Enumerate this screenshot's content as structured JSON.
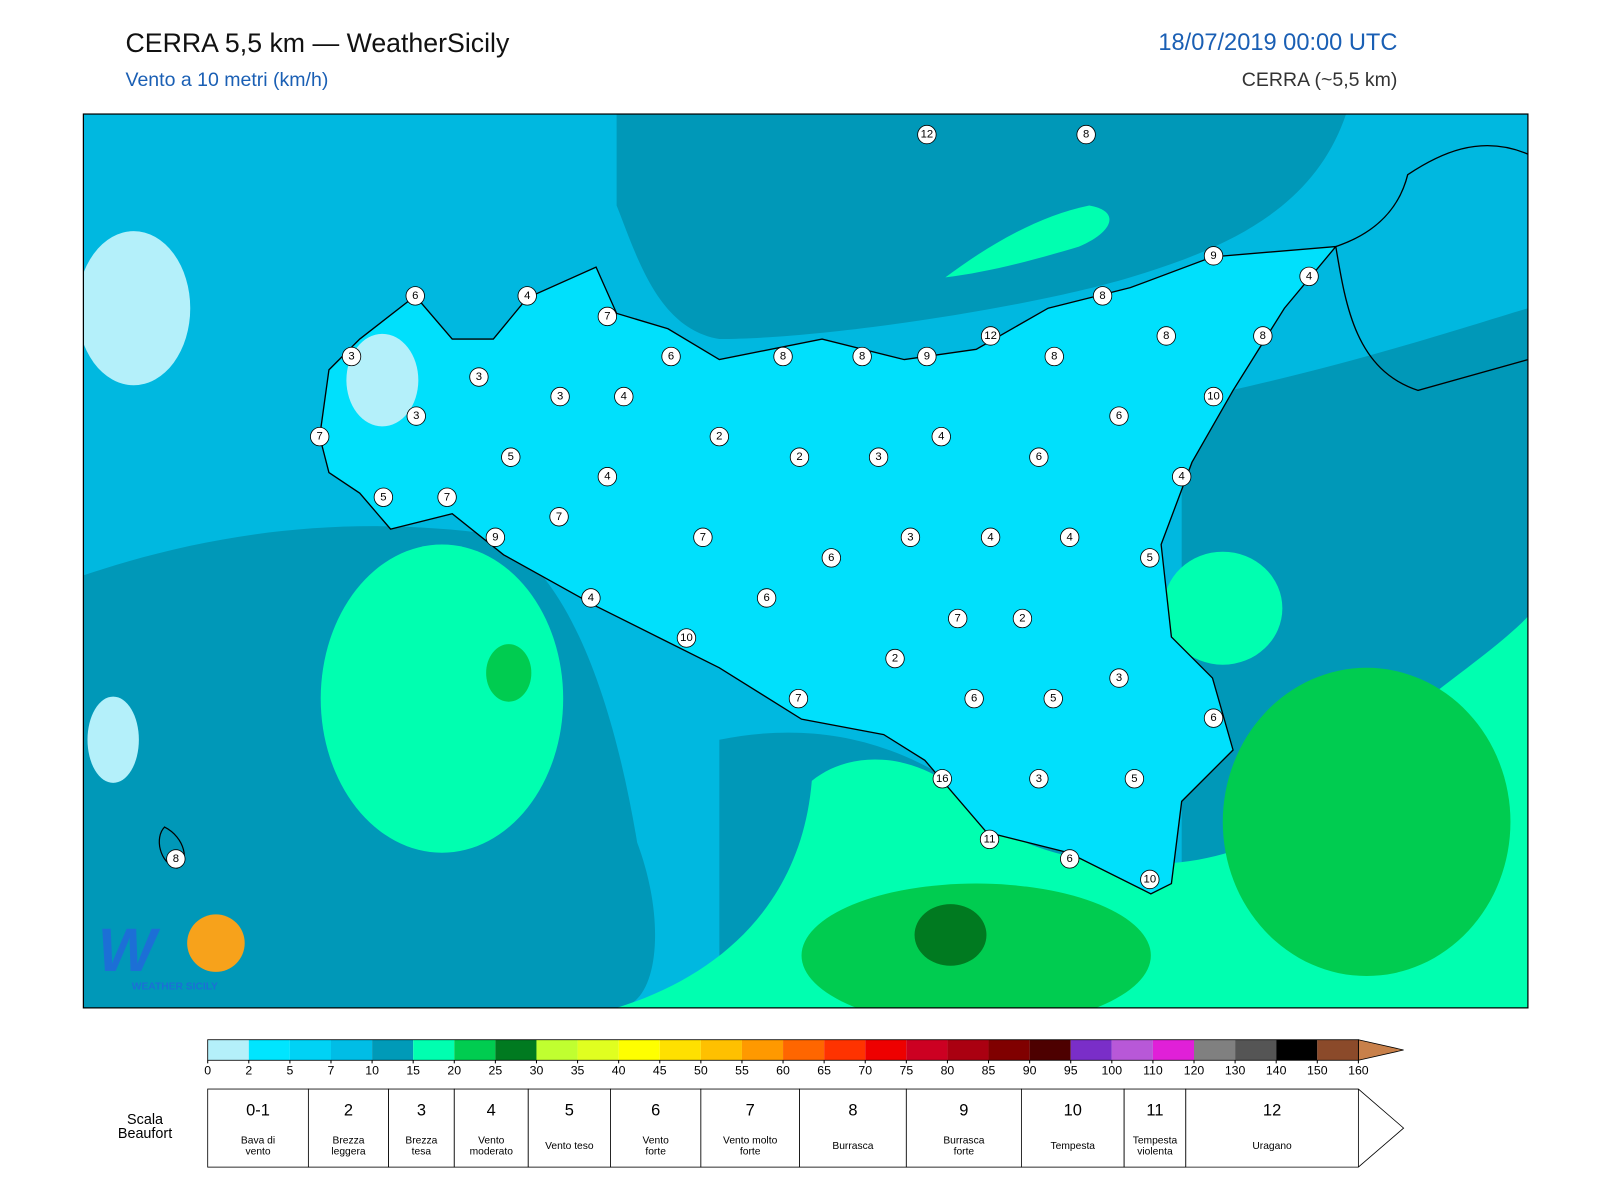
{
  "header": {
    "title": "CERRA 5,5 km — WeatherSicily",
    "subtitle": "Vento a 10 metri (km/h)",
    "datetime": "18/07/2019 00:00 UTC",
    "model": "CERRA (~5,5 km)"
  },
  "map": {
    "logo": "WEATHER SICILY",
    "stations": [
      12,
      8,
      9,
      4,
      6,
      4,
      7,
      8,
      3,
      6,
      8,
      8,
      9,
      12,
      8,
      8,
      8,
      3,
      3,
      4,
      10,
      3,
      7,
      2,
      4,
      6,
      5,
      2,
      3,
      6,
      4,
      4,
      5,
      7,
      7,
      9,
      7,
      3,
      4,
      4,
      6,
      5,
      4,
      6,
      7,
      2,
      10,
      2,
      3,
      7,
      6,
      5,
      6,
      16,
      3,
      5,
      11,
      6,
      10,
      8
    ]
  },
  "colorbar": {
    "ticks": [
      0,
      2,
      5,
      7,
      10,
      15,
      20,
      25,
      30,
      35,
      40,
      45,
      50,
      55,
      60,
      65,
      70,
      75,
      80,
      85,
      90,
      95,
      100,
      110,
      120,
      130,
      140,
      150,
      160
    ],
    "colors": [
      "#b4f0fa",
      "#00e5ff",
      "#00d2f5",
      "#00bde6",
      "#009ab8",
      "#00ffb0",
      "#00cc50",
      "#007a20",
      "#c0ff30",
      "#e0ff20",
      "#ffff00",
      "#ffe000",
      "#ffc000",
      "#ff9900",
      "#ff6600",
      "#ff3300",
      "#ee0000",
      "#cc0022",
      "#aa0011",
      "#800000",
      "#4d0000",
      "#7a2ec8",
      "#b858d8",
      "#e020d8",
      "#808080",
      "#555555",
      "#000000",
      "#8b4a2a",
      "#c8804a"
    ]
  },
  "beaufort": {
    "title": [
      "Scala",
      "Beaufort"
    ],
    "forces": [
      {
        "force": "0-1",
        "desc": [
          "Bava di",
          "vento"
        ]
      },
      {
        "force": "2",
        "desc": [
          "Brezza",
          "leggera"
        ]
      },
      {
        "force": "3",
        "desc": [
          "Brezza",
          "tesa"
        ]
      },
      {
        "force": "4",
        "desc": [
          "Vento",
          "moderato"
        ]
      },
      {
        "force": "5",
        "desc": [
          "Vento teso"
        ]
      },
      {
        "force": "6",
        "desc": [
          "Vento",
          "forte"
        ]
      },
      {
        "force": "7",
        "desc": [
          "Vento molto",
          "forte"
        ]
      },
      {
        "force": "8",
        "desc": [
          "Burrasca"
        ]
      },
      {
        "force": "9",
        "desc": [
          "Burrasca",
          "forte"
        ]
      },
      {
        "force": "10",
        "desc": [
          "Tempesta"
        ]
      },
      {
        "force": "11",
        "desc": [
          "Tempesta",
          "violenta"
        ]
      },
      {
        "force": "12",
        "desc": [
          "Uragano"
        ]
      }
    ]
  }
}
